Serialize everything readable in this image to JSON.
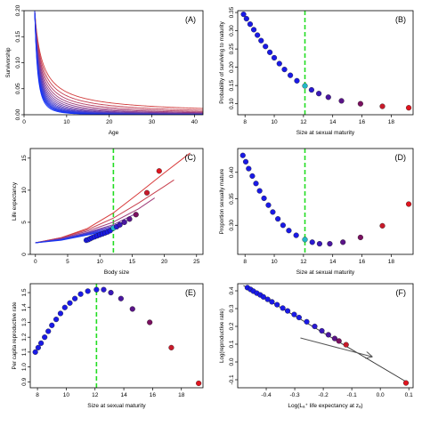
{
  "chart_data": [
    {
      "panel": "(A)",
      "type": "line",
      "xlabel": "Age",
      "ylabel": "Survivorship",
      "xlim": [
        0,
        42
      ],
      "ylim": [
        0,
        0.2
      ],
      "x_ticks": [
        0,
        10,
        20,
        30,
        40
      ],
      "y_ticks": [
        0.0,
        0.05,
        0.1,
        0.15,
        0.2
      ],
      "x_tick_labels": [
        "0",
        "10",
        "20",
        "30",
        "40"
      ],
      "y_tick_labels": [
        "0.00",
        "0.05",
        "0.10",
        "0.15",
        "0.20"
      ],
      "grid": false,
      "curve_formula": "y = 0.2 * ((x - 2.5)/1.5 + 1)^(-p), x >= 2.5",
      "curve_exponents": [
        0.85,
        0.95,
        1.05,
        1.15,
        1.25,
        1.35,
        1.45,
        1.55,
        1.65,
        1.75,
        1.85,
        1.95,
        2.05,
        2.15,
        2.3
      ],
      "curve_colors": [
        "#d23c3c",
        "#c33c50",
        "#b43c64",
        "#a03c78",
        "#8c3c8c",
        "#7a3c9b",
        "#6a3ca8",
        "#5a3cb8",
        "#4b3cc6",
        "#3f3cd2",
        "#343cdc",
        "#2a3ce4",
        "#2238ea",
        "#1a34f0",
        "#1230f5"
      ]
    },
    {
      "panel": "(B)",
      "type": "scatter",
      "xlabel": "Size at sexual maturity",
      "ylabel": "Probability of surviving to maturity",
      "xlim": [
        7.5,
        19.5
      ],
      "ylim": [
        0.07,
        0.355
      ],
      "x_ticks": [
        8,
        10,
        12,
        14,
        16,
        18
      ],
      "y_ticks": [
        0.1,
        0.15,
        0.2,
        0.25,
        0.3,
        0.35
      ],
      "x_tick_labels": [
        "8",
        "10",
        "12",
        "14",
        "16",
        "18"
      ],
      "y_tick_labels": [
        "0.10",
        "0.15",
        "0.20",
        "0.25",
        "0.30",
        "0.35"
      ],
      "vline": 12.1,
      "points": [
        {
          "x": 7.9,
          "y": 0.345,
          "color": "#1a1ae6"
        },
        {
          "x": 8.1,
          "y": 0.333,
          "color": "#1a1ae6"
        },
        {
          "x": 8.35,
          "y": 0.318,
          "color": "#1a1ae6"
        },
        {
          "x": 8.6,
          "y": 0.303,
          "color": "#1a1ae6"
        },
        {
          "x": 8.85,
          "y": 0.288,
          "color": "#1a1ae6"
        },
        {
          "x": 9.1,
          "y": 0.273,
          "color": "#1a1ae6"
        },
        {
          "x": 9.4,
          "y": 0.257,
          "color": "#1a1ae6"
        },
        {
          "x": 9.7,
          "y": 0.241,
          "color": "#1a1ae6"
        },
        {
          "x": 10.0,
          "y": 0.226,
          "color": "#1a1ae6"
        },
        {
          "x": 10.35,
          "y": 0.21,
          "color": "#1a1ae6"
        },
        {
          "x": 10.7,
          "y": 0.194,
          "color": "#1a1ae6"
        },
        {
          "x": 11.1,
          "y": 0.178,
          "color": "#1a1ae6"
        },
        {
          "x": 11.55,
          "y": 0.163,
          "color": "#1a1ae6"
        },
        {
          "x": 12.1,
          "y": 0.149,
          "color": "#22b8c8"
        },
        {
          "x": 12.55,
          "y": 0.138,
          "color": "#2a1ad2"
        },
        {
          "x": 13.05,
          "y": 0.128,
          "color": "#3a18b8"
        },
        {
          "x": 13.7,
          "y": 0.118,
          "color": "#4a16a0"
        },
        {
          "x": 14.6,
          "y": 0.108,
          "color": "#5a1488"
        },
        {
          "x": 15.9,
          "y": 0.1,
          "color": "#7a1060"
        },
        {
          "x": 17.4,
          "y": 0.093,
          "color": "#c81a2a"
        },
        {
          "x": 19.2,
          "y": 0.089,
          "color": "#e0141e"
        }
      ]
    },
    {
      "panel": "(C)",
      "type": "line",
      "xlabel": "Body size",
      "ylabel": "Life expectancy",
      "xlim": [
        -0.8,
        26
      ],
      "ylim": [
        0,
        16.5
      ],
      "x_ticks": [
        0,
        5,
        10,
        15,
        20,
        25
      ],
      "y_ticks": [
        0,
        5,
        10,
        15
      ],
      "x_tick_labels": [
        "0",
        "5",
        "10",
        "15",
        "20",
        "25"
      ],
      "y_tick_labels": [
        "0",
        "5",
        "10",
        "15"
      ],
      "vline": 12.1,
      "lines": [
        {
          "x": [
            0,
            4,
            8,
            12,
            16,
            20,
            24
          ],
          "y": [
            1.8,
            2.6,
            4.0,
            6.4,
            9.5,
            12.7,
            15.8
          ],
          "color": "#d83a3a"
        },
        {
          "x": [
            0,
            4,
            8,
            12,
            16,
            20,
            21.5
          ],
          "y": [
            1.8,
            2.6,
            3.8,
            5.6,
            8.0,
            10.6,
            11.6
          ],
          "color": "#c8404e"
        },
        {
          "x": [
            0,
            4,
            8,
            12,
            16,
            18.5
          ],
          "y": [
            1.8,
            2.5,
            3.6,
            5.0,
            7.1,
            8.8
          ],
          "color": "#a03c78"
        },
        {
          "x": [
            0,
            4,
            8,
            12,
            15.5
          ],
          "y": [
            1.8,
            2.4,
            3.4,
            4.6,
            6.3
          ],
          "color": "#7a3ca0"
        },
        {
          "x": [
            0,
            4,
            8,
            12,
            14.5
          ],
          "y": [
            1.8,
            2.4,
            3.3,
            4.4,
            5.4
          ],
          "color": "#5a3cc0"
        },
        {
          "x": [
            0,
            4,
            8,
            12,
            13.5
          ],
          "y": [
            1.8,
            2.3,
            3.2,
            4.2,
            4.8
          ],
          "color": "#3c3cd8"
        },
        {
          "x": [
            0,
            4,
            8,
            12,
            13.0
          ],
          "y": [
            1.8,
            2.3,
            3.1,
            4.0,
            4.4
          ],
          "color": "#2a3ce6"
        },
        {
          "x": [
            0,
            4,
            8,
            12.5
          ],
          "y": [
            1.8,
            2.2,
            3.0,
            4.0
          ],
          "color": "#1a34f0"
        }
      ],
      "points": [
        {
          "x": 7.9,
          "y": 2.2,
          "color": "#1a1ae6"
        },
        {
          "x": 8.2,
          "y": 2.3,
          "color": "#1a1ae6"
        },
        {
          "x": 8.5,
          "y": 2.45,
          "color": "#1a1ae6"
        },
        {
          "x": 8.8,
          "y": 2.6,
          "color": "#1a1ae6"
        },
        {
          "x": 9.2,
          "y": 2.75,
          "color": "#1a1ae6"
        },
        {
          "x": 9.6,
          "y": 2.9,
          "color": "#1a1ae6"
        },
        {
          "x": 10.0,
          "y": 3.05,
          "color": "#1a1ae6"
        },
        {
          "x": 10.4,
          "y": 3.2,
          "color": "#1a1ae6"
        },
        {
          "x": 10.8,
          "y": 3.35,
          "color": "#1a1ae6"
        },
        {
          "x": 11.2,
          "y": 3.5,
          "color": "#1a1ae6"
        },
        {
          "x": 11.6,
          "y": 3.7,
          "color": "#1a1ae6"
        },
        {
          "x": 12.1,
          "y": 4.1,
          "color": "#22b8c8"
        },
        {
          "x": 12.6,
          "y": 4.3,
          "color": "#2a1ad2"
        },
        {
          "x": 13.1,
          "y": 4.6,
          "color": "#3a18b8"
        },
        {
          "x": 13.8,
          "y": 5.0,
          "color": "#4a16a0"
        },
        {
          "x": 14.6,
          "y": 5.5,
          "color": "#5a1488"
        },
        {
          "x": 15.6,
          "y": 6.2,
          "color": "#7a1060"
        },
        {
          "x": 17.3,
          "y": 9.6,
          "color": "#c81a2a"
        },
        {
          "x": 19.2,
          "y": 13.0,
          "color": "#e0141e"
        }
      ]
    },
    {
      "panel": "(D)",
      "type": "scatter",
      "xlabel": "Size at sexual maturity",
      "ylabel": "Proportion sexually mature",
      "xlim": [
        7.5,
        19.5
      ],
      "ylim": [
        0.245,
        0.445
      ],
      "x_ticks": [
        8,
        10,
        12,
        14,
        16,
        18
      ],
      "y_ticks": [
        0.3,
        0.35,
        0.4
      ],
      "x_tick_labels": [
        "8",
        "10",
        "12",
        "14",
        "16",
        "18"
      ],
      "y_tick_labels": [
        "0.30",
        "0.35",
        "0.40"
      ],
      "vline": 12.1,
      "points": [
        {
          "x": 7.85,
          "y": 0.432,
          "color": "#1a1ae6"
        },
        {
          "x": 8.05,
          "y": 0.42,
          "color": "#1a1ae6"
        },
        {
          "x": 8.25,
          "y": 0.407,
          "color": "#1a1ae6"
        },
        {
          "x": 8.5,
          "y": 0.393,
          "color": "#1a1ae6"
        },
        {
          "x": 8.75,
          "y": 0.379,
          "color": "#1a1ae6"
        },
        {
          "x": 9.0,
          "y": 0.365,
          "color": "#1a1ae6"
        },
        {
          "x": 9.3,
          "y": 0.351,
          "color": "#1a1ae6"
        },
        {
          "x": 9.6,
          "y": 0.338,
          "color": "#1a1ae6"
        },
        {
          "x": 9.9,
          "y": 0.325,
          "color": "#1a1ae6"
        },
        {
          "x": 10.25,
          "y": 0.312,
          "color": "#1a1ae6"
        },
        {
          "x": 10.6,
          "y": 0.3,
          "color": "#1a1ae6"
        },
        {
          "x": 11.0,
          "y": 0.29,
          "color": "#1a1ae6"
        },
        {
          "x": 11.5,
          "y": 0.281,
          "color": "#1a1ae6"
        },
        {
          "x": 12.1,
          "y": 0.273,
          "color": "#22b8c8"
        },
        {
          "x": 12.6,
          "y": 0.268,
          "color": "#2a1ad2"
        },
        {
          "x": 13.1,
          "y": 0.265,
          "color": "#3a18b8"
        },
        {
          "x": 13.8,
          "y": 0.265,
          "color": "#4a16a0"
        },
        {
          "x": 14.7,
          "y": 0.268,
          "color": "#5a1488"
        },
        {
          "x": 15.9,
          "y": 0.277,
          "color": "#7a1060"
        },
        {
          "x": 17.4,
          "y": 0.299,
          "color": "#c81a2a"
        },
        {
          "x": 19.2,
          "y": 0.34,
          "color": "#e0141e"
        }
      ]
    },
    {
      "panel": "(E)",
      "type": "scatter",
      "xlabel": "Size at sexual maturity",
      "ylabel": "Per capita reproductive rate",
      "xlim": [
        7.5,
        19.5
      ],
      "ylim": [
        0.86,
        1.56
      ],
      "x_ticks": [
        8,
        10,
        12,
        14,
        16,
        18
      ],
      "y_ticks": [
        0.9,
        1.0,
        1.1,
        1.2,
        1.3,
        1.4,
        1.5
      ],
      "x_tick_labels": [
        "8",
        "10",
        "12",
        "14",
        "16",
        "18"
      ],
      "y_tick_labels": [
        "0.9",
        "1.0",
        "1.1",
        "1.2",
        "1.3",
        "1.4",
        "1.5"
      ],
      "vline": 12.1,
      "points": [
        {
          "x": 7.85,
          "y": 1.1,
          "color": "#1a1ae6"
        },
        {
          "x": 8.05,
          "y": 1.13,
          "color": "#1a1ae6"
        },
        {
          "x": 8.25,
          "y": 1.16,
          "color": "#1a1ae6"
        },
        {
          "x": 8.5,
          "y": 1.2,
          "color": "#1a1ae6"
        },
        {
          "x": 8.75,
          "y": 1.24,
          "color": "#1a1ae6"
        },
        {
          "x": 9.0,
          "y": 1.28,
          "color": "#1a1ae6"
        },
        {
          "x": 9.3,
          "y": 1.32,
          "color": "#1a1ae6"
        },
        {
          "x": 9.6,
          "y": 1.36,
          "color": "#1a1ae6"
        },
        {
          "x": 9.9,
          "y": 1.4,
          "color": "#1a1ae6"
        },
        {
          "x": 10.25,
          "y": 1.43,
          "color": "#1a1ae6"
        },
        {
          "x": 10.6,
          "y": 1.46,
          "color": "#1a1ae6"
        },
        {
          "x": 11.0,
          "y": 1.49,
          "color": "#1a1ae6"
        },
        {
          "x": 11.5,
          "y": 1.51,
          "color": "#1a1ae6"
        },
        {
          "x": 12.1,
          "y": 1.52,
          "color": "#1a1ae6"
        },
        {
          "x": 12.6,
          "y": 1.52,
          "color": "#2a1ad2"
        },
        {
          "x": 13.1,
          "y": 1.5,
          "color": "#3a18b8"
        },
        {
          "x": 13.8,
          "y": 1.46,
          "color": "#4a16a0"
        },
        {
          "x": 14.6,
          "y": 1.39,
          "color": "#5a1488"
        },
        {
          "x": 15.8,
          "y": 1.3,
          "color": "#7a1060"
        },
        {
          "x": 17.3,
          "y": 1.13,
          "color": "#c81a2a"
        },
        {
          "x": 19.2,
          "y": 0.89,
          "color": "#e0141e"
        }
      ]
    },
    {
      "panel": "(F)",
      "type": "scatter",
      "xlabel": "Log(Lₐ⁺ life expectancy at zₐ)",
      "ylabel": "Log(reproductive rate)",
      "xlim": [
        -0.5,
        0.115
      ],
      "ylim": [
        -0.145,
        0.44
      ],
      "x_ticks": [
        -0.4,
        -0.3,
        -0.2,
        -0.1,
        0.0,
        0.1
      ],
      "y_ticks": [
        -0.1,
        0.0,
        0.1,
        0.2,
        0.3,
        0.4
      ],
      "x_tick_labels": [
        "-0.4",
        "-0.3",
        "-0.2",
        "-0.1",
        "0.0",
        "0.1"
      ],
      "y_tick_labels": [
        "-0.1",
        "0.0",
        "0.1",
        "0.2",
        "0.3",
        "0.4"
      ],
      "fit_line": {
        "x": [
          -0.48,
          0.1
        ],
        "y": [
          0.43,
          -0.12
        ]
      },
      "arrow": {
        "x": [
          -0.28,
          -0.03
        ],
        "y": [
          0.135,
          0.03
        ]
      },
      "points": [
        {
          "x": -0.466,
          "y": 0.418,
          "color": "#1a1ae6"
        },
        {
          "x": -0.455,
          "y": 0.408,
          "color": "#1a1ae6"
        },
        {
          "x": -0.445,
          "y": 0.398,
          "color": "#1a1ae6"
        },
        {
          "x": -0.433,
          "y": 0.387,
          "color": "#1a1ae6"
        },
        {
          "x": -0.421,
          "y": 0.377,
          "color": "#1a1ae6"
        },
        {
          "x": -0.41,
          "y": 0.366,
          "color": "#1a1ae6"
        },
        {
          "x": -0.395,
          "y": 0.352,
          "color": "#1a1ae6"
        },
        {
          "x": -0.38,
          "y": 0.338,
          "color": "#1a1ae6"
        },
        {
          "x": -0.362,
          "y": 0.322,
          "color": "#1a1ae6"
        },
        {
          "x": -0.342,
          "y": 0.303,
          "color": "#1a1ae6"
        },
        {
          "x": -0.325,
          "y": 0.287,
          "color": "#1a1ae6"
        },
        {
          "x": -0.302,
          "y": 0.267,
          "color": "#1a1ae6"
        },
        {
          "x": -0.285,
          "y": 0.25,
          "color": "#1a1ae6"
        },
        {
          "x": -0.258,
          "y": 0.226,
          "color": "#1a1ae6"
        },
        {
          "x": -0.23,
          "y": 0.2,
          "color": "#2a1ad2"
        },
        {
          "x": -0.205,
          "y": 0.175,
          "color": "#3a18b8"
        },
        {
          "x": -0.182,
          "y": 0.153,
          "color": "#4a16a0"
        },
        {
          "x": -0.16,
          "y": 0.132,
          "color": "#5a1488"
        },
        {
          "x": -0.145,
          "y": 0.118,
          "color": "#7a1060"
        },
        {
          "x": -0.12,
          "y": 0.097,
          "color": "#c81a2a"
        },
        {
          "x": 0.09,
          "y": -0.118,
          "color": "#e0141e"
        }
      ]
    }
  ],
  "style": {
    "vline_color": "#22dd22",
    "axis_color": "#000000",
    "fit_line_color": "#333333",
    "arrow_color": "#555555"
  }
}
